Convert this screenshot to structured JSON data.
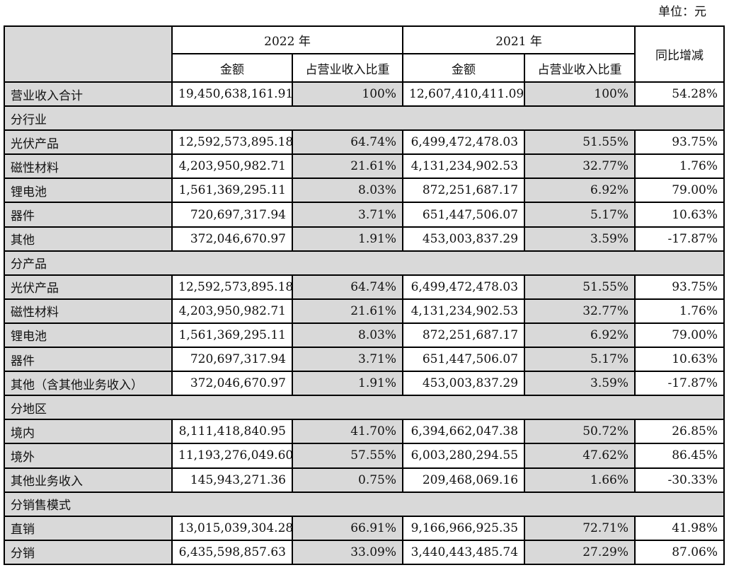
{
  "unit_label": "单位：元",
  "header": {
    "year_2022": "2022 年",
    "year_2021": "2021 年",
    "yoy": "同比增减",
    "amount": "金额",
    "ratio": "占营业收入比重"
  },
  "rows": [
    {
      "type": "data",
      "name": "营业收入合计",
      "a22": "19,450,638,161.91",
      "r22": "100%",
      "a21": "12,607,410,411.09",
      "r21": "100%",
      "yoy": "54.28%"
    },
    {
      "type": "section",
      "name": "分行业"
    },
    {
      "type": "data",
      "name": "光伏产品",
      "a22": "12,592,573,895.18",
      "r22": "64.74%",
      "a21": "6,499,472,478.03",
      "r21": "51.55%",
      "yoy": "93.75%"
    },
    {
      "type": "data",
      "name": "磁性材料",
      "a22": "4,203,950,982.71",
      "r22": "21.61%",
      "a21": "4,131,234,902.53",
      "r21": "32.77%",
      "yoy": "1.76%"
    },
    {
      "type": "data",
      "name": "锂电池",
      "a22": "1,561,369,295.11",
      "r22": "8.03%",
      "a21": "872,251,687.17",
      "r21": "6.92%",
      "yoy": "79.00%"
    },
    {
      "type": "data",
      "name": "器件",
      "a22": "720,697,317.94",
      "r22": "3.71%",
      "a21": "651,447,506.07",
      "r21": "5.17%",
      "yoy": "10.63%"
    },
    {
      "type": "data",
      "name": "其他",
      "a22": "372,046,670.97",
      "r22": "1.91%",
      "a21": "453,003,837.29",
      "r21": "3.59%",
      "yoy": "-17.87%"
    },
    {
      "type": "section",
      "name": "分产品"
    },
    {
      "type": "data",
      "name": "光伏产品",
      "a22": "12,592,573,895.18",
      "r22": "64.74%",
      "a21": "6,499,472,478.03",
      "r21": "51.55%",
      "yoy": "93.75%"
    },
    {
      "type": "data",
      "name": "磁性材料",
      "a22": "4,203,950,982.71",
      "r22": "21.61%",
      "a21": "4,131,234,902.53",
      "r21": "32.77%",
      "yoy": "1.76%"
    },
    {
      "type": "data",
      "name": "锂电池",
      "a22": "1,561,369,295.11",
      "r22": "8.03%",
      "a21": "872,251,687.17",
      "r21": "6.92%",
      "yoy": "79.00%"
    },
    {
      "type": "data",
      "name": "器件",
      "a22": "720,697,317.94",
      "r22": "3.71%",
      "a21": "651,447,506.07",
      "r21": "5.17%",
      "yoy": "10.63%"
    },
    {
      "type": "data",
      "name": "其他（含其他业务收入）",
      "a22": "372,046,670.97",
      "r22": "1.91%",
      "a21": "453,003,837.29",
      "r21": "3.59%",
      "yoy": "-17.87%"
    },
    {
      "type": "section",
      "name": "分地区"
    },
    {
      "type": "data",
      "name": "境内",
      "a22": "8,111,418,840.95",
      "r22": "41.70%",
      "a21": "6,394,662,047.38",
      "r21": "50.72%",
      "yoy": "26.85%"
    },
    {
      "type": "data",
      "name": "境外",
      "a22": "11,193,276,049.60",
      "r22": "57.55%",
      "a21": "6,003,280,294.55",
      "r21": "47.62%",
      "yoy": "86.45%"
    },
    {
      "type": "data",
      "name": "其他业务收入",
      "a22": "145,943,271.36",
      "r22": "0.75%",
      "a21": "209,468,069.16",
      "r21": "1.66%",
      "yoy": "-30.33%"
    },
    {
      "type": "section",
      "name": "分销售模式"
    },
    {
      "type": "data",
      "name": "直销",
      "a22": "13,015,039,304.28",
      "r22": "66.91%",
      "a21": "9,166,966,925.35",
      "r21": "72.71%",
      "yoy": "41.98%"
    },
    {
      "type": "data",
      "name": "分销",
      "a22": "6,435,598,857.63",
      "r22": "33.09%",
      "a21": "3,440,443,485.74",
      "r21": "27.29%",
      "yoy": "87.06%"
    }
  ],
  "colors": {
    "gray": "#d9d9d9",
    "border": "#000000",
    "text": "#111111"
  }
}
